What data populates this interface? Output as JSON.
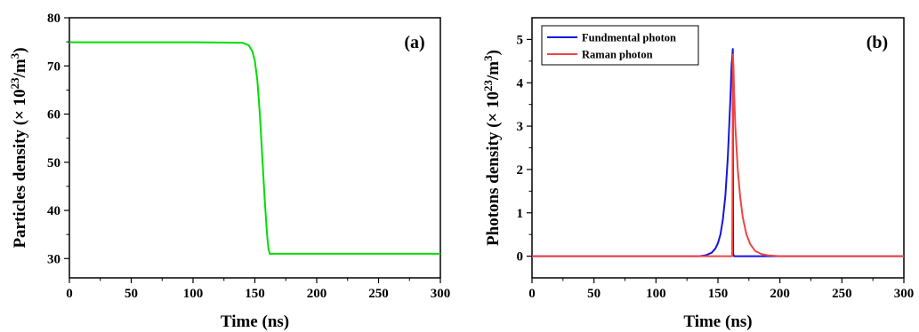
{
  "chart_data": [
    {
      "type": "line",
      "panel_label": "(a)",
      "xlabel": "Time (ns)",
      "ylabel_main": "Particles density (× 10",
      "ylabel_sup": "23",
      "ylabel_mid": "/m",
      "ylabel_sup2": "3",
      "ylabel_end": ")",
      "xlim": [
        0,
        300
      ],
      "ylim": [
        26,
        80
      ],
      "xticks": [
        "0",
        "50",
        "100",
        "150",
        "200",
        "250",
        "300"
      ],
      "yticks": [
        "30",
        "40",
        "50",
        "60",
        "70",
        "80"
      ],
      "grid": false,
      "series": [
        {
          "color": "#00dd00",
          "x": [
            0,
            50,
            100,
            140,
            145,
            148,
            150,
            152,
            154,
            156,
            158,
            160,
            161,
            162,
            200,
            250,
            300
          ],
          "y": [
            74.9,
            74.9,
            74.9,
            74.8,
            74.3,
            73.0,
            71.0,
            67.0,
            60.0,
            51.0,
            42.0,
            34.5,
            32.0,
            31.0,
            31.0,
            31.0,
            31.0
          ]
        }
      ]
    },
    {
      "type": "line",
      "panel_label": "(b)",
      "xlabel": "Time (ns)",
      "ylabel_main": "Photons density (× 10",
      "ylabel_sup": "23",
      "ylabel_mid": "/m",
      "ylabel_sup2": "3",
      "ylabel_end": ")",
      "xlim": [
        0,
        300
      ],
      "ylim": [
        -0.5,
        5.5
      ],
      "xticks": [
        "0",
        "50",
        "100",
        "150",
        "200",
        "250",
        "300"
      ],
      "yticks": [
        "0",
        "1",
        "2",
        "3",
        "4",
        "5"
      ],
      "grid": false,
      "legend_position": "top-left",
      "series": [
        {
          "name": "Fundmental photon",
          "color": "#1515e0",
          "x": [
            0,
            135,
            140,
            145,
            148,
            150,
            152,
            154,
            156,
            158,
            160,
            161,
            162,
            162.3,
            163,
            170,
            300
          ],
          "y": [
            0,
            0,
            0.02,
            0.08,
            0.18,
            0.3,
            0.5,
            0.85,
            1.4,
            2.3,
            3.6,
            4.4,
            4.78,
            0.05,
            0,
            0,
            0
          ]
        },
        {
          "name": "Raman photon",
          "color": "#ee4444",
          "x": [
            0,
            161.5,
            161.8,
            162,
            162.5,
            163,
            164,
            166,
            168,
            170,
            173,
            176,
            180,
            185,
            190,
            200,
            300
          ],
          "y": [
            0,
            0,
            2.0,
            4.65,
            4.4,
            3.8,
            3.0,
            2.0,
            1.35,
            0.9,
            0.5,
            0.28,
            0.12,
            0.05,
            0.02,
            0,
            0
          ]
        }
      ]
    }
  ]
}
